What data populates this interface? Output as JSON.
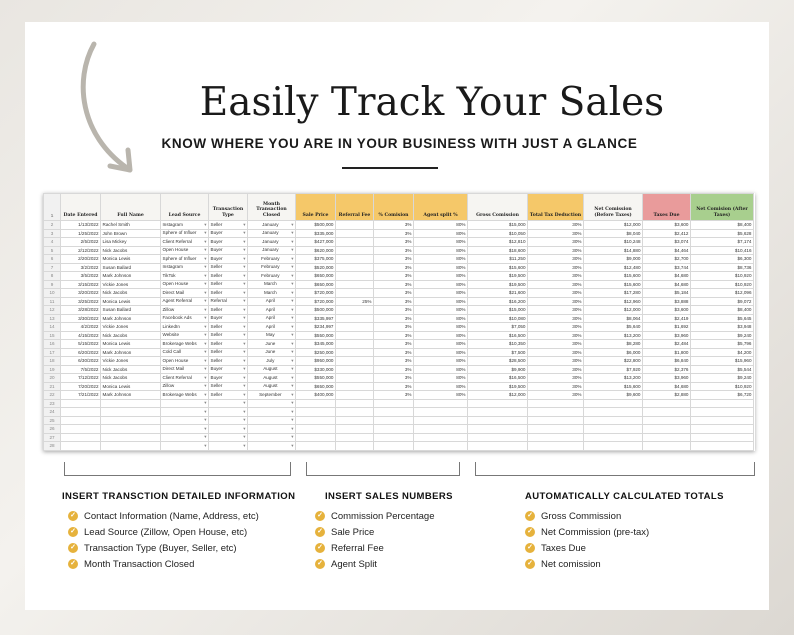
{
  "title": "Easily Track Your Sales",
  "subtitle": "KNOW WHERE YOU ARE IN YOUR BUSINESS WITH JUST A GLANCE",
  "sheet": {
    "headers": [
      "Date Entered",
      "Full Name",
      "Lead Source",
      "Transaction Type",
      "Month Transaction Closed",
      "Sale Price",
      "Referral Fee",
      "% Comision",
      "Agent split %",
      "Gross Comission",
      "Total Tax Deduction",
      "Net Comission (Before Taxes)",
      "Taxes Due",
      "Net Comision (After Taxes)"
    ],
    "rows": [
      [
        "1/13/2022",
        "Rachel Smith",
        "Instagram",
        "Seller",
        "January",
        "$500,000",
        "",
        "3%",
        "80%",
        "$15,000",
        "30%",
        "$12,000",
        "$3,600",
        "$8,400"
      ],
      [
        "1/25/2022",
        "John Brown",
        "Sphere of Influer",
        "Buyer",
        "January",
        "$335,000",
        "",
        "3%",
        "80%",
        "$10,050",
        "30%",
        "$8,040",
        "$2,412",
        "$5,628"
      ],
      [
        "2/5/2022",
        "Lisa Mickey",
        "Client Referral",
        "Buyer",
        "January",
        "$427,000",
        "",
        "3%",
        "80%",
        "$12,810",
        "30%",
        "$10,248",
        "$3,074",
        "$7,174"
      ],
      [
        "2/12/2022",
        "Nick Jacobs",
        "Open House",
        "Buyer",
        "January",
        "$620,000",
        "",
        "3%",
        "80%",
        "$18,600",
        "30%",
        "$14,880",
        "$4,464",
        "$10,416"
      ],
      [
        "2/20/2022",
        "Monica Lewis",
        "Sphere of Influer",
        "Buyer",
        "February",
        "$375,000",
        "",
        "3%",
        "80%",
        "$11,250",
        "30%",
        "$9,000",
        "$2,700",
        "$6,300"
      ],
      [
        "3/2/2022",
        "Susan Ballard",
        "Instagram",
        "Seller",
        "February",
        "$520,000",
        "",
        "3%",
        "80%",
        "$15,600",
        "30%",
        "$12,480",
        "$3,744",
        "$8,736"
      ],
      [
        "3/5/2022",
        "Mark Johnson",
        "TikTok",
        "Seller",
        "February",
        "$650,000",
        "",
        "3%",
        "80%",
        "$19,500",
        "30%",
        "$15,600",
        "$4,680",
        "$10,920"
      ],
      [
        "3/15/2022",
        "Vickie Jones",
        "Open House",
        "Seller",
        "March",
        "$650,000",
        "",
        "3%",
        "80%",
        "$19,500",
        "30%",
        "$15,600",
        "$4,680",
        "$10,920"
      ],
      [
        "3/20/2022",
        "Nick Jacobs",
        "Direct Mail",
        "Seller",
        "March",
        "$720,000",
        "",
        "3%",
        "80%",
        "$21,600",
        "30%",
        "$17,280",
        "$5,184",
        "$12,096"
      ],
      [
        "3/25/2022",
        "Monica Lewis",
        "Agent Referral",
        "Referral",
        "April",
        "$720,000",
        "25%",
        "3%",
        "80%",
        "$16,200",
        "30%",
        "$12,960",
        "$3,888",
        "$9,072"
      ],
      [
        "3/28/2022",
        "Susan Ballard",
        "Zillow",
        "Seller",
        "April",
        "$500,000",
        "",
        "3%",
        "80%",
        "$15,000",
        "30%",
        "$12,000",
        "$3,600",
        "$8,400"
      ],
      [
        "3/30/2022",
        "Mark Johnson",
        "Facebook Ads",
        "Buyer",
        "April",
        "$335,997",
        "",
        "3%",
        "80%",
        "$10,080",
        "30%",
        "$8,064",
        "$2,419",
        "$5,645"
      ],
      [
        "4/2/2022",
        "Vickie Jones",
        "LinkedIn",
        "Seller",
        "April",
        "$234,997",
        "",
        "3%",
        "80%",
        "$7,050",
        "30%",
        "$5,640",
        "$1,692",
        "$3,948"
      ],
      [
        "4/15/2022",
        "Nick Jacobs",
        "Website",
        "Seller",
        "May",
        "$550,000",
        "",
        "3%",
        "80%",
        "$16,500",
        "30%",
        "$13,200",
        "$3,960",
        "$9,240"
      ],
      [
        "5/15/2022",
        "Monica Lewis",
        "Brokerage Webs",
        "Seller",
        "June",
        "$345,000",
        "",
        "3%",
        "80%",
        "$10,350",
        "30%",
        "$8,280",
        "$2,484",
        "$5,796"
      ],
      [
        "6/20/2022",
        "Mark Johnson",
        "Cold Call",
        "Seller",
        "June",
        "$250,000",
        "",
        "3%",
        "80%",
        "$7,500",
        "30%",
        "$6,000",
        "$1,800",
        "$4,200"
      ],
      [
        "6/30/2022",
        "Vickie Jones",
        "Open House",
        "Seller",
        "July",
        "$950,000",
        "",
        "3%",
        "80%",
        "$28,500",
        "30%",
        "$22,800",
        "$6,840",
        "$15,960"
      ],
      [
        "7/5/2022",
        "Nick Jacobs",
        "Direct Mail",
        "Buyer",
        "August",
        "$330,000",
        "",
        "3%",
        "80%",
        "$9,900",
        "30%",
        "$7,920",
        "$2,376",
        "$5,544"
      ],
      [
        "7/12/2022",
        "Nick Jacobs",
        "Client Referral",
        "Buyer",
        "August",
        "$550,000",
        "",
        "3%",
        "80%",
        "$16,500",
        "30%",
        "$13,200",
        "$3,960",
        "$9,240"
      ],
      [
        "7/20/2022",
        "Monica Lewis",
        "Zillow",
        "Seller",
        "August",
        "$650,000",
        "",
        "3%",
        "80%",
        "$19,500",
        "30%",
        "$15,600",
        "$4,680",
        "$10,920"
      ],
      [
        "7/21/2022",
        "Mark Johnson",
        "Brokerage Webs",
        "Seller",
        "September",
        "$400,000",
        "",
        "3%",
        "80%",
        "$12,000",
        "30%",
        "$9,600",
        "$2,880",
        "$6,720"
      ]
    ],
    "empty_row_numbers": [
      23,
      24,
      25,
      26,
      27,
      28
    ],
    "header_colors": {
      "orange": "#f5c869",
      "pink": "#e99b9b",
      "green": "#a8cf8e"
    }
  },
  "sections": [
    {
      "heading": "INSERT TRANSCTION DETAILED INFORMATION",
      "items": [
        "Contact Information (Name, Address, etc)",
        "Lead Source (Zillow, Open House, etc)",
        "Transaction Type (Buyer, Seller, etc)",
        "Month Transaction Closed"
      ]
    },
    {
      "heading": "INSERT SALES NUMBERS",
      "items": [
        "Commission Percentage",
        "Sale Price",
        "Referral Fee",
        "Agent Split"
      ]
    },
    {
      "heading": "AUTOMATICALLY CALCULATED TOTALS",
      "items": [
        "Gross Commission",
        "Net Commission (pre-tax)",
        "Taxes Due",
        "Net comission"
      ]
    }
  ],
  "accent": "#e6b23c"
}
